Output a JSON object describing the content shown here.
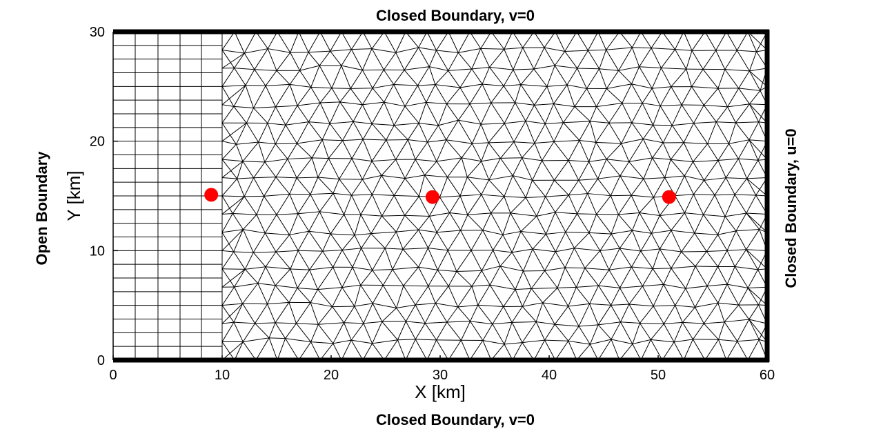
{
  "boundaries": {
    "top": "Closed Boundary, v=0",
    "bottom": "Closed Boundary, v=0",
    "left": "Open Boundary",
    "right": "Closed Boundary, u=0"
  },
  "colors": {
    "mesh": "#000000",
    "boundary": "#000000",
    "station": "#ff0000"
  },
  "chart_data": {
    "type": "scatter",
    "title": "",
    "xlabel": "X [km]",
    "ylabel": "Y [km]",
    "xlim": [
      0,
      60
    ],
    "ylim": [
      0,
      30
    ],
    "x_ticks": [
      "0",
      "10",
      "20",
      "30",
      "40",
      "50",
      "60"
    ],
    "y_ticks": [
      "0",
      "10",
      "20",
      "30"
    ],
    "grid": false,
    "mesh": {
      "structured_region_x": [
        0,
        10
      ],
      "unstructured_region_x": [
        10,
        60
      ]
    },
    "series": [
      {
        "x": [
          9,
          29.3,
          51
        ],
        "y": [
          15.1,
          14.9,
          14.9
        ]
      }
    ]
  }
}
